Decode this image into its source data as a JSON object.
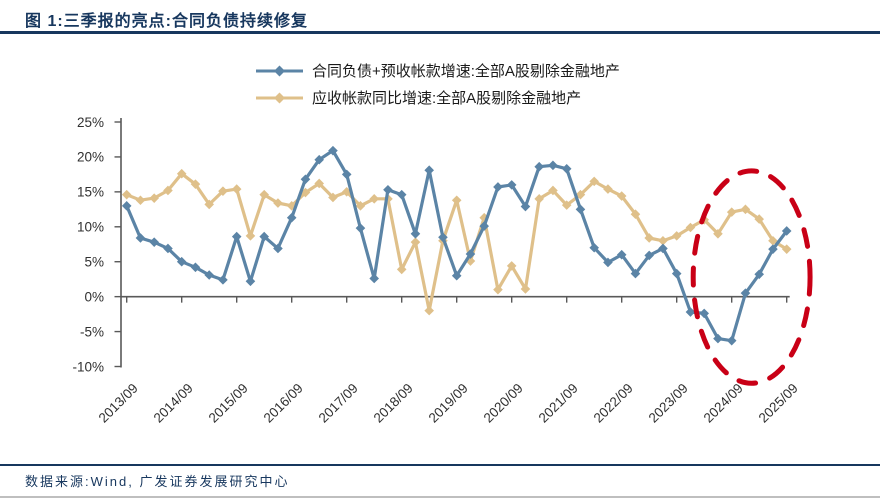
{
  "page": {
    "title": "图 1:三季报的亮点:合同负债持续修复",
    "footer": "数据来源:Wind, 广发证券发展研究中心"
  },
  "legend": [
    {
      "label": "合同负债+预收帐款增速:全部A股剔除金融地产",
      "color": "#5b84a6",
      "marker": "diamond"
    },
    {
      "label": "应收帐款同比增速:全部A股剔除金融地产",
      "color": "#dfc08a",
      "marker": "diamond"
    }
  ],
  "colors": {
    "accent_navy": "#17375e",
    "series_blue": "#5b84a6",
    "series_tan": "#dfc08a",
    "highlight_red": "#c90016",
    "axis_gray": "#595959"
  },
  "chart_data": {
    "type": "line",
    "title": "三季报的亮点:合同负债持续修复",
    "xlabel": "",
    "ylabel": "",
    "ylim": [
      -10,
      25
    ],
    "y_ticks": [
      25,
      20,
      15,
      10,
      5,
      0,
      -5,
      -10
    ],
    "y_tick_suffix": "%",
    "grid": false,
    "legend_position": "top",
    "marker": "diamond",
    "categories": [
      "2013/09",
      "2013/12",
      "2014/03",
      "2014/06",
      "2014/09",
      "2014/12",
      "2015/03",
      "2015/06",
      "2015/09",
      "2015/12",
      "2016/03",
      "2016/06",
      "2016/09",
      "2016/12",
      "2017/03",
      "2017/06",
      "2017/09",
      "2017/12",
      "2018/03",
      "2018/06",
      "2018/09",
      "2018/12",
      "2019/03",
      "2019/06",
      "2019/09",
      "2019/12",
      "2020/03",
      "2020/06",
      "2020/09",
      "2020/12",
      "2021/03",
      "2021/06",
      "2021/09",
      "2021/12",
      "2022/03",
      "2022/06",
      "2022/09",
      "2022/12",
      "2023/03",
      "2023/06",
      "2023/09",
      "2023/12",
      "2024/03",
      "2024/06",
      "2024/09",
      "2024/12",
      "2025/03",
      "2025/06",
      "2025/09"
    ],
    "x_tick_labels": [
      "2013/09",
      "2014/09",
      "2015/09",
      "2016/09",
      "2017/09",
      "2018/09",
      "2019/09",
      "2020/09",
      "2021/09",
      "2022/09",
      "2023/09",
      "2024/09",
      "2025/09"
    ],
    "series": [
      {
        "id": "contract-liabilities",
        "name": "合同负债+预收帐款增速:全部A股剔除金融地产",
        "color": "#5b84a6",
        "values": [
          13.0,
          8.4,
          7.8,
          6.9,
          5.0,
          4.2,
          3.1,
          2.4,
          8.6,
          2.2,
          8.6,
          6.9,
          11.3,
          16.8,
          19.6,
          20.9,
          17.5,
          9.8,
          2.6,
          15.3,
          14.6,
          9.0,
          18.1,
          8.5,
          3.0,
          6.1,
          10.1,
          15.7,
          16.0,
          12.9,
          18.6,
          18.8,
          18.3,
          12.5,
          7.0,
          4.9,
          6.0,
          3.3,
          5.9,
          6.9,
          3.3,
          -2.2,
          -2.4,
          -6.0,
          -6.3,
          0.5,
          3.2,
          6.8,
          9.4
        ]
      },
      {
        "id": "accounts-receivable",
        "name": "应收帐款同比增速:全部A股剔除金融地产",
        "color": "#dfc08a",
        "values": [
          14.6,
          13.8,
          14.1,
          15.2,
          17.6,
          16.1,
          13.2,
          15.1,
          15.4,
          8.7,
          14.6,
          13.4,
          13.0,
          14.9,
          16.2,
          14.2,
          15.0,
          13.0,
          14.0,
          14.0,
          3.9,
          7.8,
          -2.0,
          8.0,
          13.8,
          5.1,
          11.3,
          1.0,
          4.4,
          1.1,
          14.0,
          15.2,
          13.1,
          14.6,
          16.5,
          15.4,
          14.4,
          11.8,
          8.4,
          8.0,
          8.7,
          9.9,
          11.0,
          9.0,
          12.1,
          12.5,
          11.1,
          8.0,
          6.8
        ]
      }
    ],
    "annotation": {
      "shape": "dashed-ellipse",
      "color": "#c90016",
      "note": "highlights 2024-2025 contract-liability recovery",
      "x_index_center": 45.45,
      "x_index_radius": 4.25,
      "y_center": 2.8,
      "y_radius": 15.2
    }
  }
}
